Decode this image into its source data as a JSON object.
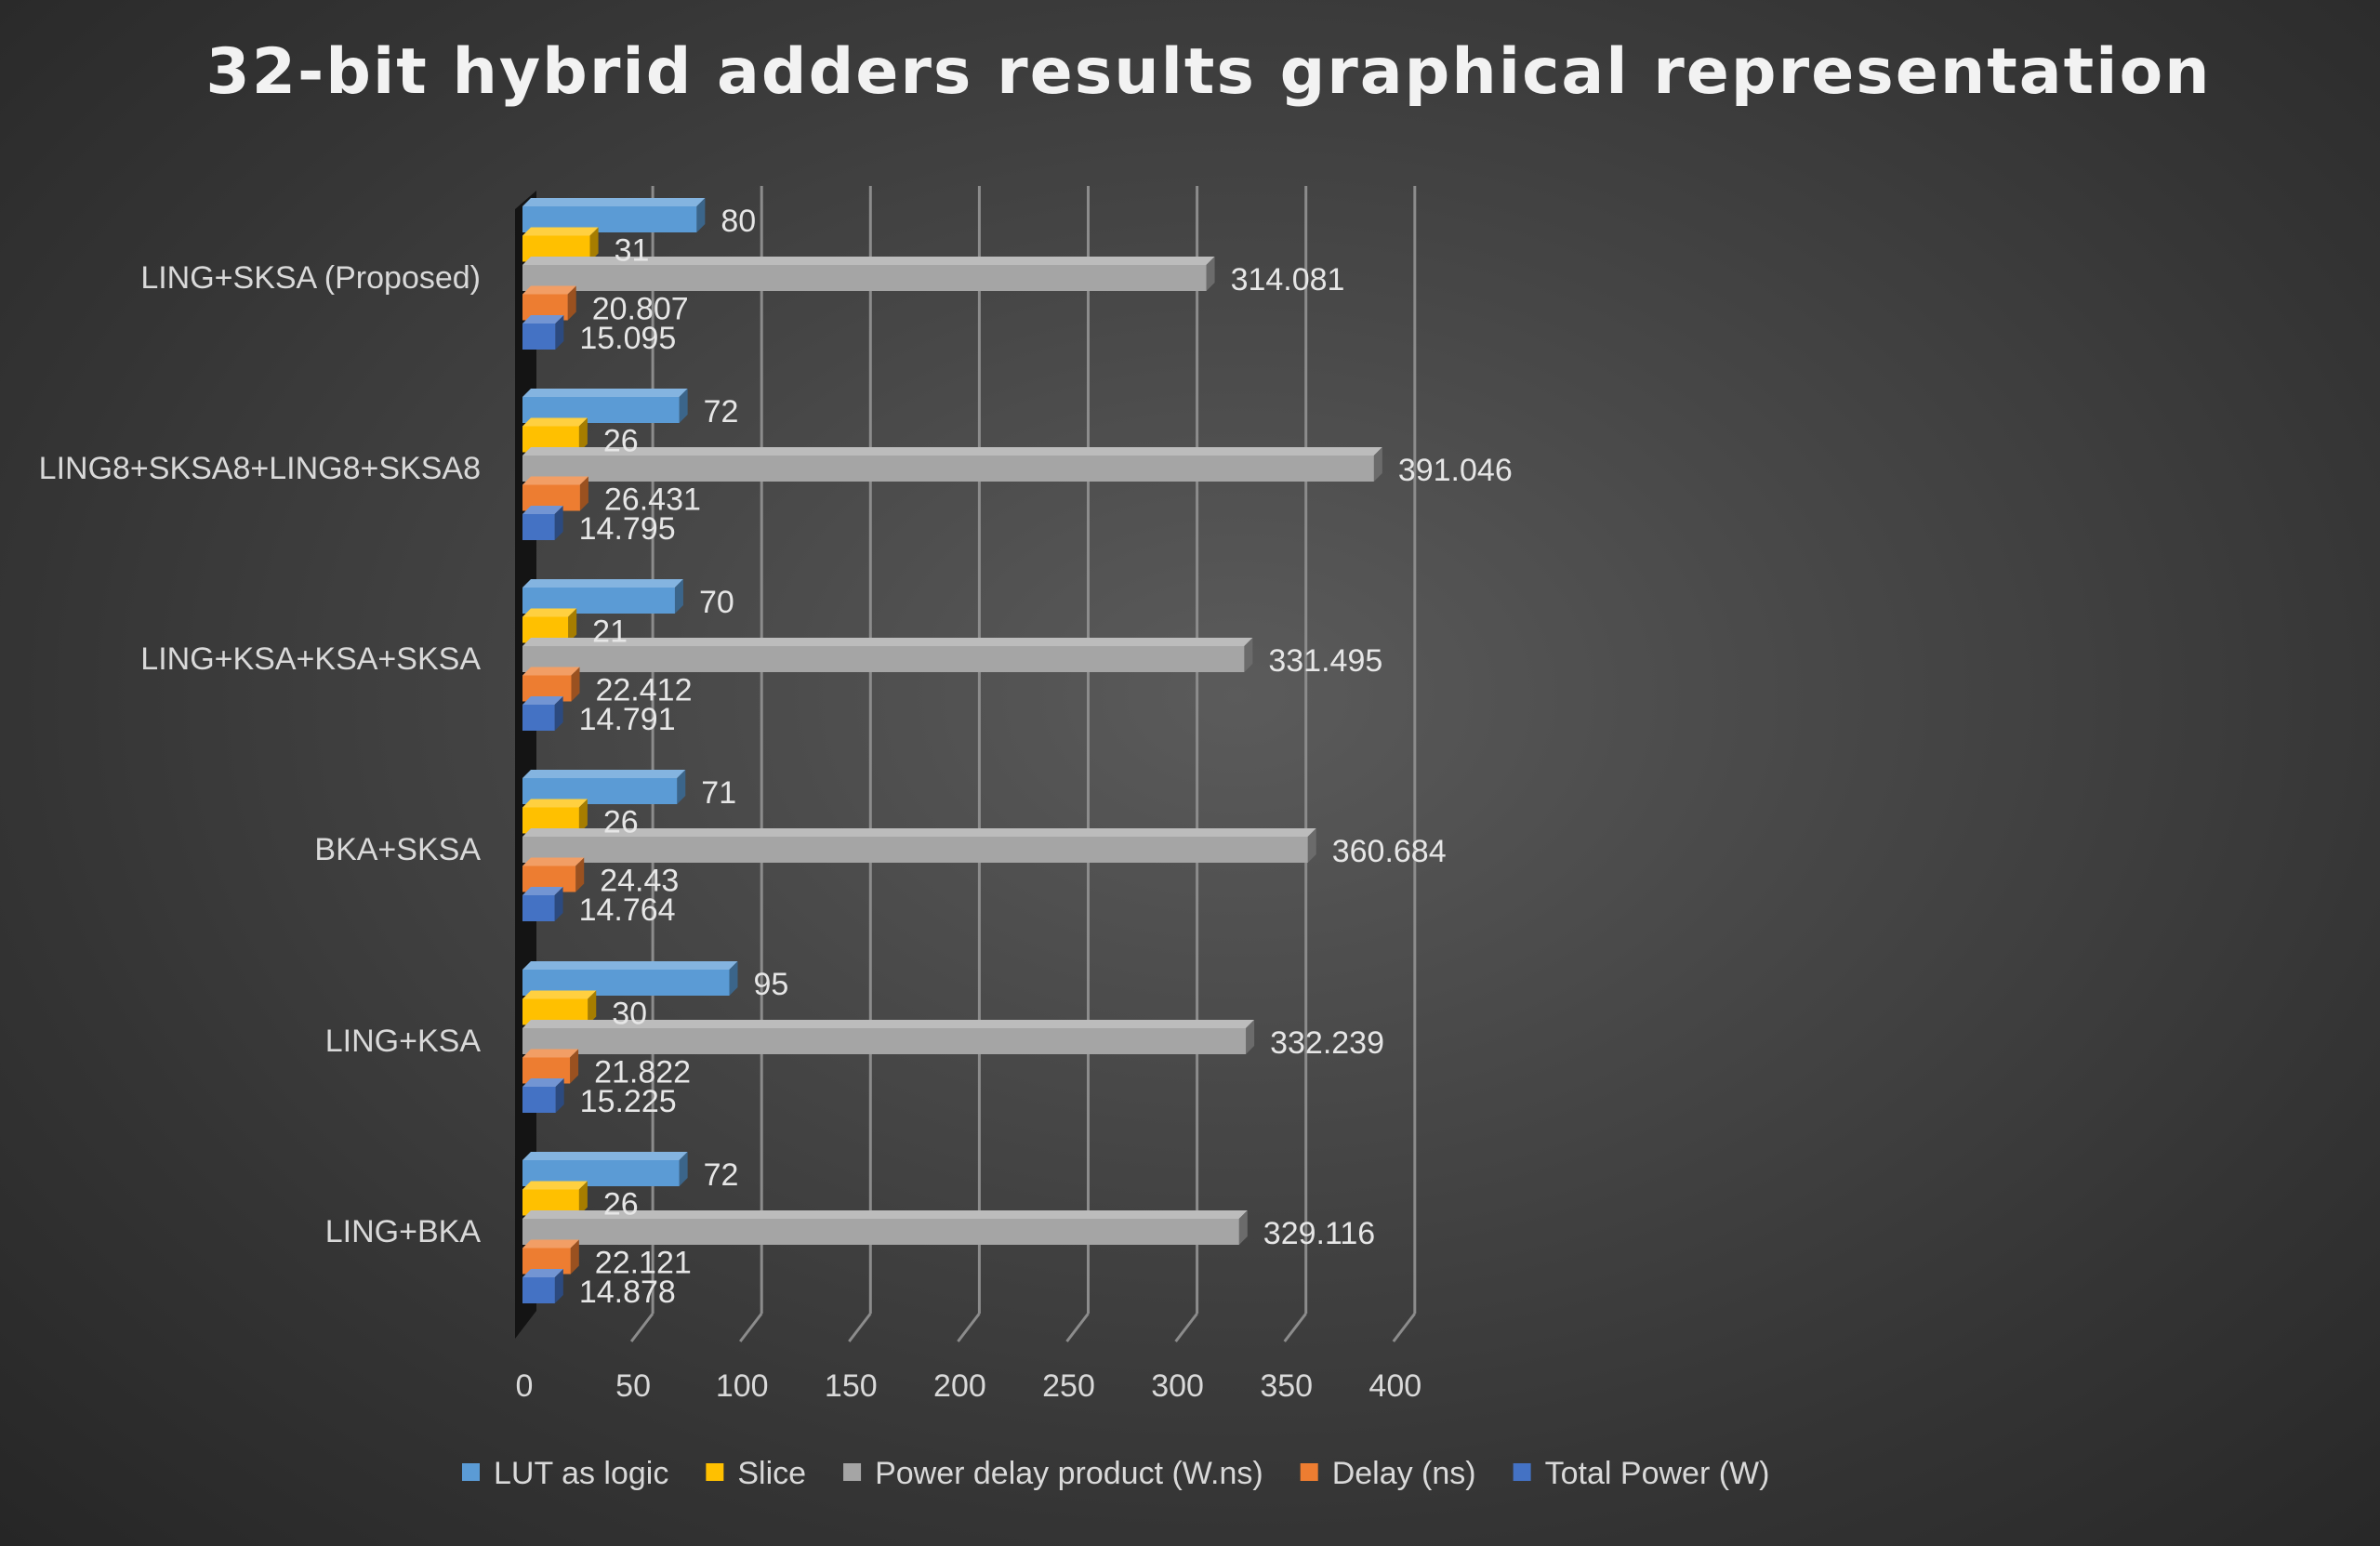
{
  "chart_data": {
    "type": "bar",
    "orientation": "horizontal",
    "style": "3d-clustered",
    "title": "32-bit hybrid adders results graphical representation",
    "xlabel": "",
    "ylabel": "",
    "xlim": [
      0,
      400
    ],
    "x_ticks": [
      "0",
      "50",
      "100",
      "150",
      "200",
      "250",
      "300",
      "350",
      "400"
    ],
    "grid": true,
    "legend_position": "bottom",
    "categories": [
      "LING+SKSA (Proposed)",
      "LING8+SKSA8+LING8+SKSA8",
      "LING+KSA+KSA+SKSA",
      "BKA+SKSA",
      "LING+KSA",
      "LING+BKA"
    ],
    "series": [
      {
        "name": "LUT as logic",
        "color": "#5b9bd5",
        "values": [
          80,
          72,
          70,
          71,
          95,
          72
        ],
        "labels": [
          "80",
          "72",
          "70",
          "71",
          "95",
          "72"
        ]
      },
      {
        "name": "Slice",
        "color": "#ffc000",
        "values": [
          31,
          26,
          21,
          26,
          30,
          26
        ],
        "labels": [
          "31",
          "26",
          "21",
          "26",
          "30",
          "26"
        ]
      },
      {
        "name": "Power delay product (W.ns)",
        "color": "#a5a5a5",
        "values": [
          314.081,
          391.046,
          331.495,
          360.684,
          332.239,
          329.116
        ],
        "labels": [
          "314.081",
          "391.046",
          "331.495",
          "360.684",
          "332.239",
          "329.116"
        ]
      },
      {
        "name": "Delay (ns)",
        "color": "#ed7d31",
        "values": [
          20.807,
          26.431,
          22.412,
          24.43,
          21.822,
          22.121
        ],
        "labels": [
          "20.807",
          "26.431",
          "22.412",
          "24.43",
          "21.822",
          "22.121"
        ]
      },
      {
        "name": "Total Power (W)",
        "color": "#4472c4",
        "values": [
          15.095,
          14.795,
          14.791,
          14.764,
          15.225,
          14.878
        ],
        "labels": [
          "15.095",
          "14.795",
          "14.791",
          "14.764",
          "15.225",
          "14.878"
        ]
      }
    ]
  }
}
